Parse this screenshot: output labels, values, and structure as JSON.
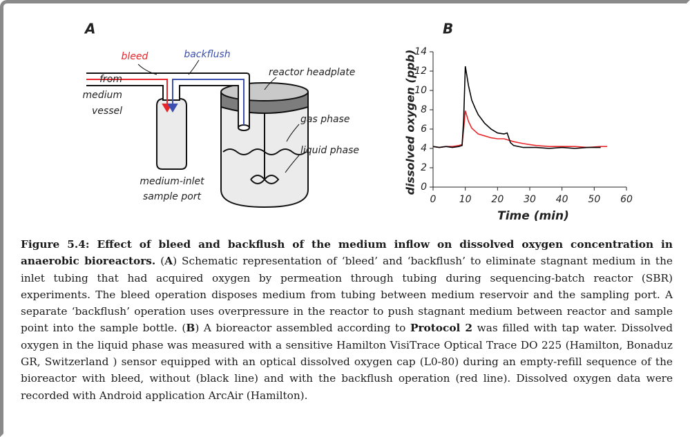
{
  "panel_labels": [
    "A",
    "B"
  ],
  "diagram": {
    "bleed": "bleed",
    "backflush": "backflush",
    "from_medium_vessel": [
      "from",
      "medium",
      "vessel"
    ],
    "reactor_headplate": "reactor headplate",
    "gas_phase": "gas phase",
    "liquid_phase": "liquid phase",
    "sample_port": [
      "medium-inlet",
      "sample port"
    ]
  },
  "chart_data": {
    "type": "line",
    "x_label": "Time (min)",
    "y_label": "dissolved oxygen (ppb)",
    "x": [
      0,
      2,
      4,
      6,
      8,
      9,
      9.5,
      10,
      11,
      12,
      13,
      14,
      16,
      18,
      20,
      22,
      23,
      24,
      25,
      28,
      32,
      36,
      40,
      44,
      48,
      52,
      54
    ],
    "series": [
      {
        "color": "#000000",
        "values": [
          4.2,
          4.1,
          4.2,
          4.1,
          4.2,
          4.3,
          7,
          12.5,
          10.5,
          9,
          8.2,
          7.5,
          6.6,
          6,
          5.6,
          5.5,
          5.6,
          4.6,
          4.3,
          4.1,
          4.1,
          4.0,
          4.1,
          4.0,
          4.1,
          4.1,
          null
        ]
      },
      {
        "color": "#e8262a",
        "values": [
          4.2,
          4.1,
          4.2,
          4.2,
          4.3,
          4.4,
          6,
          7.9,
          6.8,
          6.1,
          5.8,
          5.5,
          5.3,
          5.1,
          5.0,
          5.0,
          4.9,
          4.8,
          4.7,
          4.5,
          4.3,
          4.2,
          4.2,
          4.2,
          4.1,
          4.2,
          4.2
        ]
      }
    ],
    "xlim": [
      0,
      60
    ],
    "xticks": [
      0,
      10,
      20,
      30,
      40,
      50,
      60
    ],
    "ylim": [
      0,
      14
    ],
    "yticks": [
      0,
      2,
      4,
      6,
      8,
      10,
      12,
      14
    ]
  },
  "caption": {
    "segments": [
      {
        "text": "Figure 5.4: Effect of bleed and backflush of the medium inflow on dissolved oxygen concentration in anaerobic bioreactors.",
        "bold": true
      },
      {
        "text": " (",
        "bold": false
      },
      {
        "text": "A",
        "bold": true
      },
      {
        "text": ") Schematic representation of ‘bleed’ and ‘backflush’ to eliminate stagnant medium in the inlet tubing that had acquired oxygen by permeation through tubing during sequencing-batch reactor (SBR) experiments. The bleed operation disposes medium from tubing between medium reservoir and the sampling port. A separate ‘backflush’ operation uses overpressure in the reactor to push stagnant medium between reactor and sample point into the sample bottle. (",
        "bold": false
      },
      {
        "text": "B",
        "bold": true
      },
      {
        "text": ") A bioreactor assembled according to ",
        "bold": false
      },
      {
        "text": "Protocol 2",
        "bold": true
      },
      {
        "text": " was filled with tap water. Dissolved oxygen in the liquid phase was measured with a sensitive Hamilton VisiTrace Optical Trace DO 225 (Hamilton, Bonaduz GR, Switzerland ) sensor equipped with an optical dissolved oxygen cap (L0-80) during an empty-refill sequence of the bioreactor with bleed, without (black line) and with the backflush operation (red line). Dissolved oxygen data were recorded with Android application ArcAir (Hamilton).",
        "bold": false
      }
    ]
  }
}
